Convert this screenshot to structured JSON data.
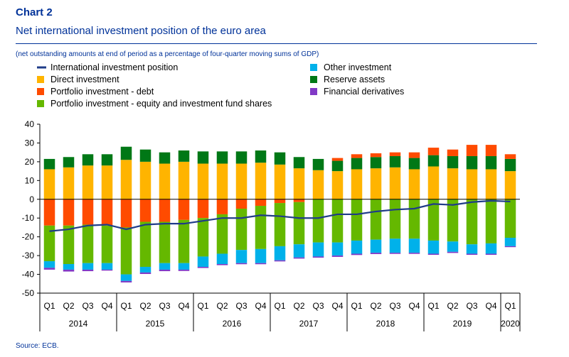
{
  "header": {
    "label": "Chart 2",
    "title": "Net international investment position of the euro area",
    "subtitle": "(net outstanding amounts at end of period as a percentage of four-quarter moving sums of GDP)",
    "source": "Source: ECB."
  },
  "colors": {
    "line": "#1f3c88",
    "direct": "#ffb400",
    "portfolio_debt": "#ff4b00",
    "portfolio_equity": "#65b800",
    "other": "#00b1ea",
    "reserve": "#007816",
    "derivatives": "#8139c6"
  },
  "legend": [
    {
      "key": "line",
      "label": "International investment position",
      "kind": "line"
    },
    {
      "key": "other",
      "label": "Other investment",
      "kind": "box"
    },
    {
      "key": "direct",
      "label": "Direct investment",
      "kind": "box"
    },
    {
      "key": "reserve",
      "label": "Reserve assets",
      "kind": "box"
    },
    {
      "key": "portfolio_debt",
      "label": "Portfolio investment - debt",
      "kind": "box"
    },
    {
      "key": "derivatives",
      "label": "Financial derivatives",
      "kind": "box"
    },
    {
      "key": "portfolio_equity",
      "label": "Portfolio investment - equity and investment fund shares",
      "kind": "box"
    }
  ],
  "chart_data": {
    "type": "bar",
    "stacked": true,
    "ylim": [
      -50,
      40
    ],
    "yticks": [
      40,
      30,
      20,
      10,
      0,
      -10,
      -20,
      -30,
      -40,
      -50
    ],
    "grid": false,
    "legend_position": "top-left",
    "categories": [
      "Q1",
      "Q2",
      "Q3",
      "Q4",
      "Q1",
      "Q2",
      "Q3",
      "Q4",
      "Q1",
      "Q2",
      "Q3",
      "Q4",
      "Q1",
      "Q2",
      "Q3",
      "Q4",
      "Q1",
      "Q2",
      "Q3",
      "Q4",
      "Q1",
      "Q2",
      "Q3",
      "Q4",
      "Q1"
    ],
    "years": [
      {
        "label": "2014",
        "quarters": 4
      },
      {
        "label": "2015",
        "quarters": 4
      },
      {
        "label": "2016",
        "quarters": 4
      },
      {
        "label": "2017",
        "quarters": 4
      },
      {
        "label": "2018",
        "quarters": 4
      },
      {
        "label": "2019",
        "quarters": 4
      },
      {
        "label": "2020",
        "quarters": 1
      }
    ],
    "series": [
      {
        "key": "direct",
        "name": "Direct investment",
        "values": [
          16,
          17,
          18,
          18,
          21,
          20,
          19,
          20,
          19,
          19,
          19,
          19.5,
          18.5,
          16.5,
          15.5,
          15,
          16,
          16.5,
          17,
          16,
          17.5,
          16.5,
          16,
          16,
          15
        ]
      },
      {
        "key": "reserve",
        "name": "Reserve assets",
        "values": [
          5.5,
          5.5,
          6,
          6,
          7,
          6.5,
          6,
          6,
          6.5,
          6.5,
          6.5,
          6.5,
          6.5,
          6,
          6,
          5.5,
          6,
          6,
          6,
          6,
          6,
          6.5,
          7,
          7,
          6.5
        ]
      },
      {
        "key": "portfolio_debt",
        "name": "Portfolio investment - debt",
        "values": [
          -14,
          -14,
          -13.5,
          -14,
          -15,
          -12,
          -12,
          -11,
          -10,
          -8,
          -5,
          -3.5,
          -2,
          -1.5,
          0,
          1.5,
          2,
          2,
          2,
          3,
          4,
          3.5,
          6,
          6,
          2.5
        ]
      },
      {
        "key": "portfolio_equity",
        "name": "Portfolio investment - equity and investment fund shares",
        "values": [
          -19,
          -20.5,
          -20.5,
          -20,
          -25,
          -24,
          -22,
          -23,
          -20.5,
          -21,
          -22,
          -23,
          -23,
          -22.5,
          -23,
          -23,
          -22,
          -21.5,
          -21,
          -21,
          -22,
          -22.5,
          -24,
          -23.5,
          -20.5
        ]
      },
      {
        "key": "other",
        "name": "Other investment",
        "values": [
          -3.5,
          -3,
          -3.5,
          -3.5,
          -3.5,
          -3,
          -3.5,
          -3.5,
          -5.5,
          -5.5,
          -7,
          -7.5,
          -7.5,
          -7,
          -7.5,
          -7,
          -7,
          -7,
          -7.5,
          -7.5,
          -7,
          -5.5,
          -5,
          -5.5,
          -4.5
        ]
      },
      {
        "key": "derivatives",
        "name": "Financial derivatives",
        "values": [
          -1,
          -1,
          -0.8,
          -0.5,
          -0.8,
          -0.8,
          -0.8,
          -0.7,
          -0.6,
          -0.6,
          -0.6,
          -0.6,
          -0.6,
          -0.6,
          -0.6,
          -0.7,
          -0.7,
          -0.7,
          -0.6,
          -0.6,
          -0.6,
          -0.6,
          -0.6,
          -0.6,
          -0.5
        ]
      },
      {
        "key": "line",
        "name": "International investment position",
        "kind": "line",
        "values": [
          -17,
          -16,
          -14,
          -13.5,
          -16,
          -13.5,
          -13,
          -13,
          -11.5,
          -10,
          -10,
          -8.5,
          -9,
          -10,
          -10,
          -8,
          -8,
          -6.5,
          -5.5,
          -5,
          -2.5,
          -3,
          -1.5,
          -0.8,
          -1.2
        ]
      }
    ]
  }
}
